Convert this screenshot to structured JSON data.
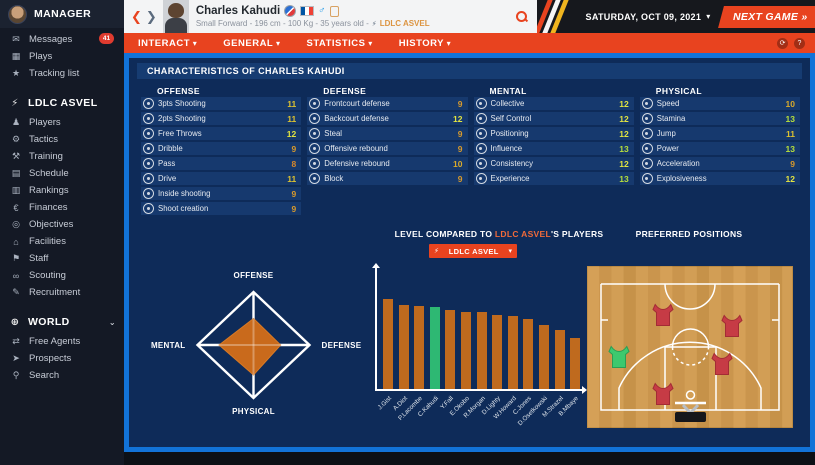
{
  "sidebar": {
    "manager_label": "MANAGER",
    "groups": [
      {
        "header": null,
        "items": [
          {
            "icon": "messages-icon",
            "glyph": "✉",
            "label": "Messages",
            "badge": "41"
          },
          {
            "icon": "plays-icon",
            "glyph": "▦",
            "label": "Plays"
          },
          {
            "icon": "tracking-list-icon",
            "glyph": "★",
            "label": "Tracking list"
          }
        ]
      },
      {
        "header": {
          "icon": "team-lightning-icon",
          "glyph": "⚡",
          "label": "LDLC ASVEL"
        },
        "items": [
          {
            "icon": "players-icon",
            "glyph": "♟",
            "label": "Players"
          },
          {
            "icon": "tactics-icon",
            "glyph": "⚙",
            "label": "Tactics"
          },
          {
            "icon": "training-icon",
            "glyph": "⚒",
            "label": "Training"
          },
          {
            "icon": "schedule-icon",
            "glyph": "▤",
            "label": "Schedule"
          },
          {
            "icon": "rankings-icon",
            "glyph": "▥",
            "label": "Rankings"
          },
          {
            "icon": "finances-icon",
            "glyph": "€",
            "label": "Finances"
          },
          {
            "icon": "objectives-icon",
            "glyph": "◎",
            "label": "Objectives"
          },
          {
            "icon": "facilities-icon",
            "glyph": "⌂",
            "label": "Facilities"
          },
          {
            "icon": "staff-icon",
            "glyph": "⚑",
            "label": "Staff"
          },
          {
            "icon": "scouting-icon",
            "glyph": "∞",
            "label": "Scouting"
          },
          {
            "icon": "recruitment-icon",
            "glyph": "✎",
            "label": "Recruitment"
          }
        ]
      },
      {
        "header": {
          "icon": "globe-icon",
          "glyph": "⊕",
          "label": "WORLD",
          "chevron": "⌄"
        },
        "items": [
          {
            "icon": "free-agents-icon",
            "glyph": "⇄",
            "label": "Free Agents"
          },
          {
            "icon": "prospects-icon",
            "glyph": "➤",
            "label": "Prospects"
          },
          {
            "icon": "search-icon",
            "glyph": "⚲",
            "label": "Search"
          }
        ]
      }
    ]
  },
  "header": {
    "player_name": "Charles Kahudi",
    "player_info": "Small Forward - 196 cm - 100 Kg - 35 years old -",
    "player_team": "LDLC ASVEL",
    "team_bolt_glyph": "⚡",
    "date": "SATURDAY, OCT 09, 2021",
    "next_game_label": "NEXT GAME"
  },
  "nav": {
    "tabs": [
      "INTERACT",
      "GENERAL",
      "STATISTICS",
      "HISTORY"
    ],
    "right_icons": [
      {
        "icon": "sync-icon",
        "glyph": "⟳"
      },
      {
        "icon": "help-icon",
        "glyph": "?"
      }
    ]
  },
  "characteristics": {
    "title": "CHARACTERISTICS OF CHARLES KAHUDI",
    "value_colors": {
      "8": "#d8882b",
      "9": "#d7992c",
      "10": "#d9aa2b",
      "11": "#dcc231",
      "12": "#e3e441",
      "13": "#b7df3c"
    },
    "groups": [
      {
        "name": "OFFENSE",
        "rows": [
          {
            "label": "3pts Shooting",
            "value": 11
          },
          {
            "label": "2pts Shooting",
            "value": 11
          },
          {
            "label": "Free Throws",
            "value": 12
          },
          {
            "label": "Dribble",
            "value": 9
          },
          {
            "label": "Pass",
            "value": 8
          },
          {
            "label": "Drive",
            "value": 11
          },
          {
            "label": "Inside shooting",
            "value": 9
          },
          {
            "label": "Shoot creation",
            "value": 9
          }
        ]
      },
      {
        "name": "DEFENSE",
        "rows": [
          {
            "label": "Frontcourt defense",
            "value": 9
          },
          {
            "label": "Backcourt defense",
            "value": 12
          },
          {
            "label": "Steal",
            "value": 9
          },
          {
            "label": "Offensive rebound",
            "value": 9
          },
          {
            "label": "Defensive rebound",
            "value": 10
          },
          {
            "label": "Block",
            "value": 9
          }
        ]
      },
      {
        "name": "MENTAL",
        "rows": [
          {
            "label": "Collective",
            "value": 12
          },
          {
            "label": "Self Control",
            "value": 12
          },
          {
            "label": "Positioning",
            "value": 12
          },
          {
            "label": "Influence",
            "value": 13
          },
          {
            "label": "Consistency",
            "value": 12
          },
          {
            "label": "Experience",
            "value": 13
          }
        ]
      },
      {
        "name": "PHYSICAL",
        "rows": [
          {
            "label": "Speed",
            "value": 10
          },
          {
            "label": "Stamina",
            "value": 13
          },
          {
            "label": "Jump",
            "value": 11
          },
          {
            "label": "Power",
            "value": 13
          },
          {
            "label": "Acceleration",
            "value": 9
          },
          {
            "label": "Explosiveness",
            "value": 12
          }
        ]
      }
    ]
  },
  "compare": {
    "title_prefix": "LEVEL COMPARED TO ",
    "title_team": "LDLC ASVEL",
    "title_suffix": "'S PLAYERS",
    "dropdown_label": "LDLC ASVEL",
    "dropdown_bolt_glyph": "⚡",
    "dropdown_caret_glyph": "▾"
  },
  "positions_title": "PREFERRED POSITIONS",
  "chart_data": [
    {
      "type": "radar",
      "title": "Attribute category averages",
      "categories": [
        "OFFENSE",
        "DEFENSE",
        "PHYSICAL",
        "MENTAL"
      ],
      "values": [
        10.0,
        9.7,
        11.3,
        12.3
      ],
      "range": [
        0,
        20
      ],
      "fill_color": "#c96a1c",
      "outline_color": "#ffffff"
    },
    {
      "type": "bar",
      "title": "LEVEL COMPARED TO LDLC ASVEL'S PLAYERS",
      "categories": [
        "J.Gist",
        "A.Diot",
        "P.Lacombe",
        "C.Kahudi",
        "Y.Fall",
        "E.Okobo",
        "R.Morgan",
        "D.Lighty",
        "W.Howard",
        "C.Jones",
        "D.Osetkowski",
        "M.Strazel",
        "B.Mbaye"
      ],
      "values": [
        14.8,
        13.8,
        13.6,
        13.4,
        12.9,
        12.6,
        12.6,
        12.2,
        11.9,
        11.4,
        10.5,
        9.7,
        8.3
      ],
      "highlight_index": 3,
      "bar_color": "#bf6a1e",
      "highlight_color": "#2eb873",
      "ylim": [
        0,
        20
      ],
      "tick_labels_hidden": true,
      "xlabel": "",
      "ylabel": ""
    },
    {
      "type": "positions-map",
      "title": "PREFERRED POSITIONS",
      "jerseys": [
        {
          "x": 76,
          "y": 49,
          "state": "other"
        },
        {
          "x": 145,
          "y": 60,
          "state": "other"
        },
        {
          "x": 32,
          "y": 91,
          "state": "selected"
        },
        {
          "x": 135,
          "y": 98,
          "state": "other"
        },
        {
          "x": 76,
          "y": 128,
          "state": "other"
        }
      ],
      "selected_color": "#3dc96e",
      "other_color": "#c63b45"
    }
  ]
}
